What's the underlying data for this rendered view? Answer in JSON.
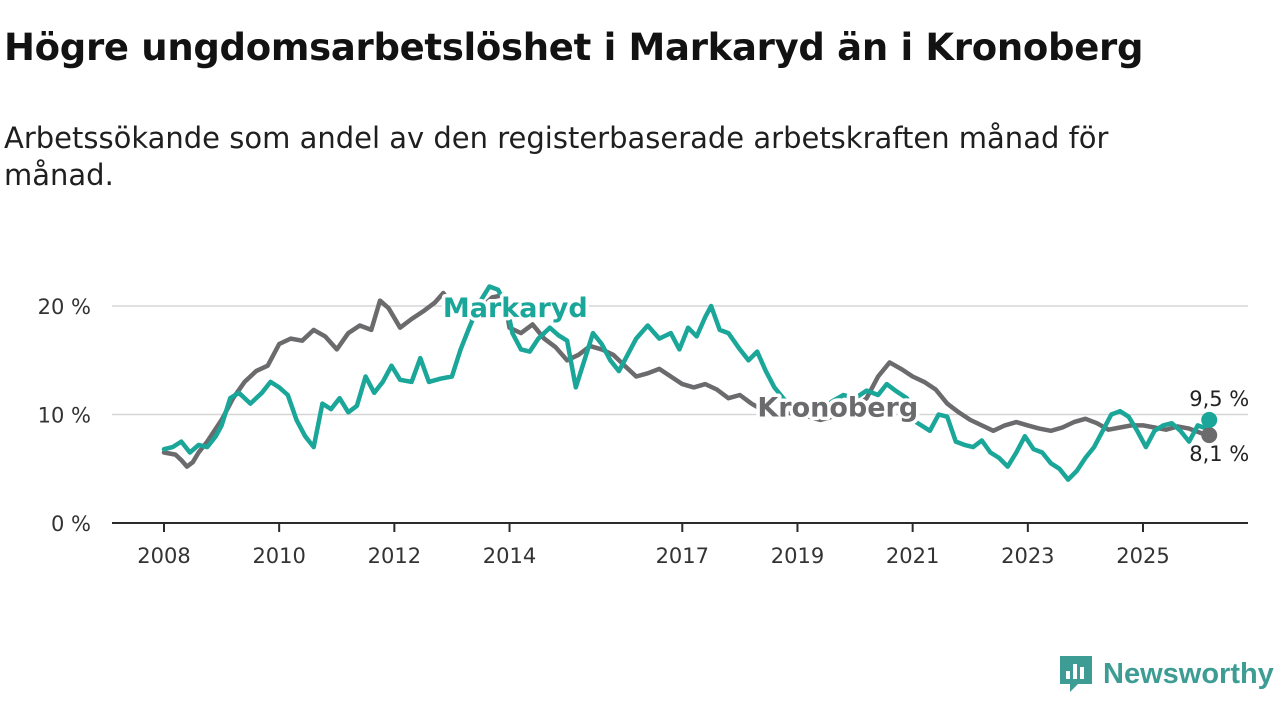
{
  "title": "Högre ungdomsarbetslöshet i Markaryd än i Kronoberg",
  "subtitle": "Arbetssökande som andel av den registerbaserade arbetskraften månad för månad.",
  "brand": {
    "name": "Newsworthy",
    "color": "#3d9c93"
  },
  "chart_data": {
    "type": "line",
    "ylim": [
      0,
      22
    ],
    "yticks": [
      0,
      10,
      20
    ],
    "ytick_labels": [
      "0 %",
      "10 %",
      "20 %"
    ],
    "xlim": [
      2008.0,
      2026.5
    ],
    "xticks": [
      2008,
      2010,
      2012,
      2014,
      2017,
      2019,
      2021,
      2023,
      2025
    ],
    "xtick_labels": [
      "2008",
      "2010",
      "2012",
      "2014",
      "2017",
      "2019",
      "2021",
      "2023",
      "2025"
    ],
    "grid": true,
    "series": [
      {
        "name": "Kronoberg",
        "color": "#6b6b6e",
        "end_value": 8.1,
        "end_label": "8,1 %",
        "points": [
          [
            2008.0,
            6.5
          ],
          [
            2008.2,
            6.3
          ],
          [
            2008.3,
            5.8
          ],
          [
            2008.4,
            5.2
          ],
          [
            2008.5,
            5.6
          ],
          [
            2008.6,
            6.5
          ],
          [
            2008.75,
            7.5
          ],
          [
            2009.0,
            9.5
          ],
          [
            2009.2,
            11.5
          ],
          [
            2009.4,
            13.0
          ],
          [
            2009.6,
            14.0
          ],
          [
            2009.8,
            14.5
          ],
          [
            2010.0,
            16.5
          ],
          [
            2010.2,
            17.0
          ],
          [
            2010.4,
            16.8
          ],
          [
            2010.6,
            17.8
          ],
          [
            2010.8,
            17.2
          ],
          [
            2011.0,
            16.0
          ],
          [
            2011.2,
            17.5
          ],
          [
            2011.4,
            18.2
          ],
          [
            2011.6,
            17.8
          ],
          [
            2011.75,
            20.5
          ],
          [
            2011.9,
            19.8
          ],
          [
            2012.1,
            18.0
          ],
          [
            2012.3,
            18.8
          ],
          [
            2012.5,
            19.5
          ],
          [
            2012.7,
            20.3
          ],
          [
            2012.85,
            21.2
          ],
          [
            2013.0,
            20.0
          ],
          [
            2013.2,
            19.5
          ],
          [
            2013.35,
            18.8
          ],
          [
            2013.5,
            19.8
          ],
          [
            2013.7,
            20.8
          ],
          [
            2013.9,
            21.0
          ],
          [
            2014.0,
            18.0
          ],
          [
            2014.2,
            17.5
          ],
          [
            2014.4,
            18.3
          ],
          [
            2014.6,
            17.0
          ],
          [
            2014.8,
            16.2
          ],
          [
            2015.0,
            15.0
          ],
          [
            2015.2,
            15.5
          ],
          [
            2015.4,
            16.3
          ],
          [
            2015.6,
            16.0
          ],
          [
            2015.8,
            15.5
          ],
          [
            2016.0,
            14.5
          ],
          [
            2016.2,
            13.5
          ],
          [
            2016.4,
            13.8
          ],
          [
            2016.6,
            14.2
          ],
          [
            2016.8,
            13.5
          ],
          [
            2017.0,
            12.8
          ],
          [
            2017.2,
            12.5
          ],
          [
            2017.4,
            12.8
          ],
          [
            2017.6,
            12.3
          ],
          [
            2017.8,
            11.5
          ],
          [
            2018.0,
            11.8
          ],
          [
            2018.2,
            11.0
          ],
          [
            2018.4,
            10.4
          ],
          [
            2018.5,
            10.1
          ],
          [
            2018.65,
            10.0
          ],
          [
            2019.0,
            10.2
          ],
          [
            2019.2,
            9.8
          ],
          [
            2019.4,
            9.5
          ],
          [
            2019.6,
            9.8
          ],
          [
            2019.8,
            10.4
          ],
          [
            2020.0,
            10.6
          ],
          [
            2020.2,
            11.5
          ],
          [
            2020.4,
            13.5
          ],
          [
            2020.6,
            14.8
          ],
          [
            2020.8,
            14.2
          ],
          [
            2021.0,
            13.5
          ],
          [
            2021.2,
            13.0
          ],
          [
            2021.4,
            12.3
          ],
          [
            2021.6,
            11.0
          ],
          [
            2021.8,
            10.2
          ],
          [
            2022.0,
            9.5
          ],
          [
            2022.2,
            9.0
          ],
          [
            2022.4,
            8.5
          ],
          [
            2022.6,
            9.0
          ],
          [
            2022.8,
            9.3
          ],
          [
            2023.0,
            9.0
          ],
          [
            2023.2,
            8.7
          ],
          [
            2023.4,
            8.5
          ],
          [
            2023.6,
            8.8
          ],
          [
            2023.8,
            9.3
          ],
          [
            2024.0,
            9.6
          ],
          [
            2024.2,
            9.2
          ],
          [
            2024.4,
            8.6
          ],
          [
            2024.6,
            8.8
          ],
          [
            2024.8,
            9.0
          ],
          [
            2025.0,
            9.0
          ],
          [
            2025.2,
            8.8
          ],
          [
            2025.4,
            8.6
          ],
          [
            2025.6,
            8.9
          ],
          [
            2025.8,
            8.7
          ],
          [
            2026.0,
            8.3
          ],
          [
            2026.15,
            8.1
          ]
        ]
      },
      {
        "name": "Markaryd",
        "color": "#1aa699",
        "end_value": 9.5,
        "end_label": "9,5 %",
        "points": [
          [
            2008.0,
            6.8
          ],
          [
            2008.15,
            7.0
          ],
          [
            2008.3,
            7.5
          ],
          [
            2008.45,
            6.5
          ],
          [
            2008.6,
            7.2
          ],
          [
            2008.75,
            7.0
          ],
          [
            2008.9,
            8.0
          ],
          [
            2009.0,
            9.0
          ],
          [
            2009.15,
            11.5
          ],
          [
            2009.3,
            12.0
          ],
          [
            2009.5,
            11.0
          ],
          [
            2009.7,
            12.0
          ],
          [
            2009.85,
            13.0
          ],
          [
            2010.0,
            12.5
          ],
          [
            2010.15,
            11.8
          ],
          [
            2010.3,
            9.5
          ],
          [
            2010.45,
            8.0
          ],
          [
            2010.6,
            7.0
          ],
          [
            2010.75,
            11.0
          ],
          [
            2010.9,
            10.5
          ],
          [
            2011.05,
            11.5
          ],
          [
            2011.2,
            10.2
          ],
          [
            2011.35,
            10.8
          ],
          [
            2011.5,
            13.5
          ],
          [
            2011.65,
            12.0
          ],
          [
            2011.8,
            13.0
          ],
          [
            2011.95,
            14.5
          ],
          [
            2012.1,
            13.2
          ],
          [
            2012.3,
            13.0
          ],
          [
            2012.45,
            15.2
          ],
          [
            2012.6,
            13.0
          ],
          [
            2012.8,
            13.3
          ],
          [
            2013.0,
            13.5
          ],
          [
            2013.15,
            16.0
          ],
          [
            2013.3,
            18.0
          ],
          [
            2013.5,
            20.5
          ],
          [
            2013.65,
            21.8
          ],
          [
            2013.8,
            21.5
          ],
          [
            2013.95,
            20.0
          ],
          [
            2014.05,
            17.5
          ],
          [
            2014.2,
            16.0
          ],
          [
            2014.35,
            15.8
          ],
          [
            2014.5,
            17.0
          ],
          [
            2014.7,
            18.0
          ],
          [
            2014.85,
            17.3
          ],
          [
            2015.0,
            16.8
          ],
          [
            2015.15,
            12.5
          ],
          [
            2015.3,
            15.0
          ],
          [
            2015.45,
            17.5
          ],
          [
            2015.6,
            16.5
          ],
          [
            2015.75,
            15.0
          ],
          [
            2015.9,
            14.0
          ],
          [
            2016.05,
            15.5
          ],
          [
            2016.2,
            17.0
          ],
          [
            2016.4,
            18.2
          ],
          [
            2016.6,
            17.0
          ],
          [
            2016.8,
            17.5
          ],
          [
            2016.95,
            16.0
          ],
          [
            2017.1,
            18.0
          ],
          [
            2017.25,
            17.2
          ],
          [
            2017.4,
            19.0
          ],
          [
            2017.5,
            20.0
          ],
          [
            2017.65,
            17.8
          ],
          [
            2017.8,
            17.5
          ],
          [
            2018.0,
            16.0
          ],
          [
            2018.15,
            15.0
          ],
          [
            2018.3,
            15.8
          ],
          [
            2018.45,
            14.0
          ],
          [
            2018.6,
            12.5
          ],
          [
            2018.8,
            11.2
          ],
          [
            2018.9,
            10.8
          ],
          [
            2019.0,
            11.2
          ],
          [
            2019.2,
            10.6
          ],
          [
            2019.4,
            10.4
          ],
          [
            2019.6,
            11.2
          ],
          [
            2019.8,
            11.8
          ],
          [
            2020.0,
            11.5
          ],
          [
            2020.2,
            12.2
          ],
          [
            2020.4,
            11.8
          ],
          [
            2020.55,
            12.8
          ],
          [
            2020.7,
            12.2
          ],
          [
            2020.9,
            11.5
          ],
          [
            2021.0,
            9.5
          ],
          [
            2021.15,
            9.0
          ],
          [
            2021.3,
            8.5
          ],
          [
            2021.45,
            10.0
          ],
          [
            2021.6,
            9.8
          ],
          [
            2021.75,
            7.5
          ],
          [
            2021.9,
            7.2
          ],
          [
            2022.05,
            7.0
          ],
          [
            2022.2,
            7.6
          ],
          [
            2022.35,
            6.5
          ],
          [
            2022.5,
            6.0
          ],
          [
            2022.65,
            5.2
          ],
          [
            2022.8,
            6.5
          ],
          [
            2022.95,
            8.0
          ],
          [
            2023.1,
            6.8
          ],
          [
            2023.25,
            6.5
          ],
          [
            2023.4,
            5.5
          ],
          [
            2023.55,
            5.0
          ],
          [
            2023.7,
            4.0
          ],
          [
            2023.85,
            4.8
          ],
          [
            2024.0,
            6.0
          ],
          [
            2024.15,
            7.0
          ],
          [
            2024.3,
            8.5
          ],
          [
            2024.45,
            10.0
          ],
          [
            2024.6,
            10.3
          ],
          [
            2024.75,
            9.8
          ],
          [
            2024.9,
            8.5
          ],
          [
            2025.05,
            7.0
          ],
          [
            2025.2,
            8.5
          ],
          [
            2025.35,
            9.0
          ],
          [
            2025.5,
            9.2
          ],
          [
            2025.65,
            8.5
          ],
          [
            2025.8,
            7.5
          ],
          [
            2025.95,
            9.0
          ],
          [
            2026.05,
            8.8
          ],
          [
            2026.15,
            9.5
          ]
        ]
      }
    ],
    "annotations": [
      {
        "text": "Markaryd",
        "series": "Markaryd"
      },
      {
        "text": "Kronoberg",
        "series": "Kronoberg"
      }
    ]
  }
}
